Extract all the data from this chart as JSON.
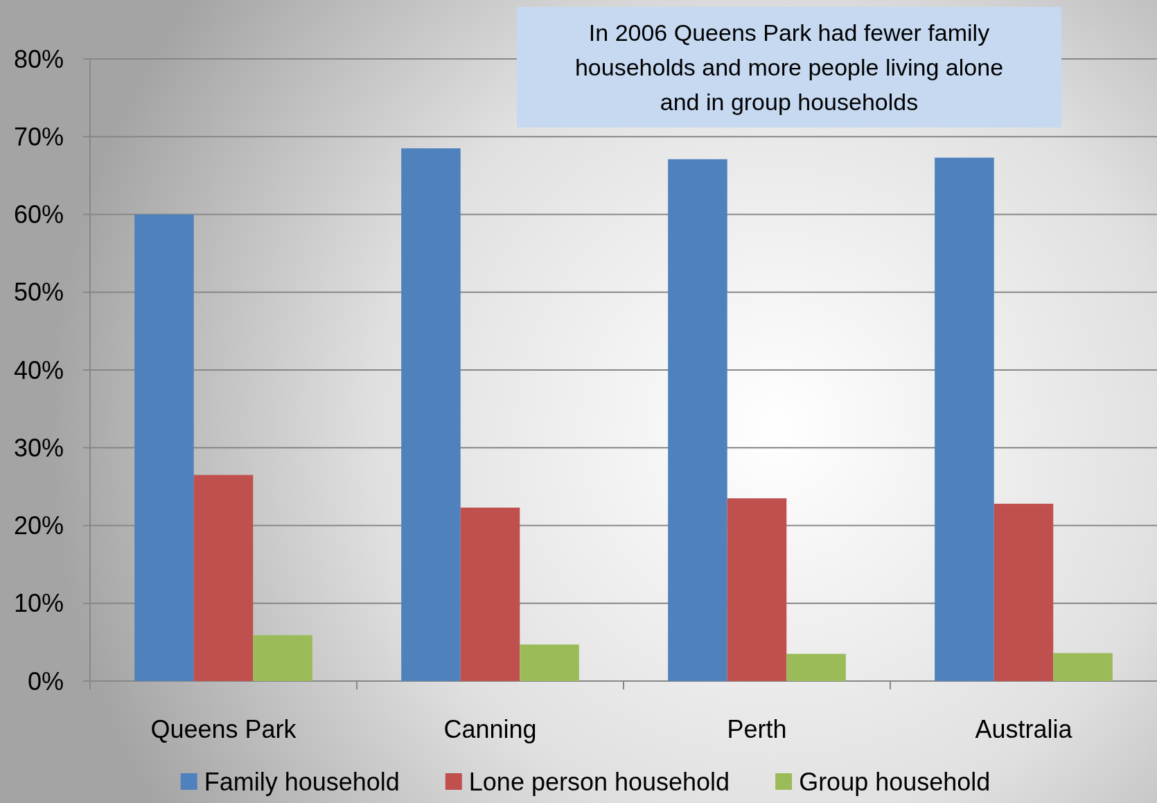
{
  "chart_data": {
    "type": "bar",
    "categories": [
      "Queens Park",
      "Canning",
      "Perth",
      "Australia"
    ],
    "series": [
      {
        "name": "Family household",
        "color": "#4f81bd",
        "values": [
          60.0,
          68.5,
          67.1,
          67.3
        ]
      },
      {
        "name": "Lone person household",
        "color": "#c0504d",
        "values": [
          26.5,
          22.3,
          23.5,
          22.8
        ]
      },
      {
        "name": "Group household",
        "color": "#9bbb59",
        "values": [
          5.9,
          4.7,
          3.5,
          3.6
        ]
      }
    ],
    "ylim": [
      0,
      80
    ],
    "yticks": [
      {
        "value": 0,
        "label": "0%"
      },
      {
        "value": 10,
        "label": "10%"
      },
      {
        "value": 20,
        "label": "20%"
      },
      {
        "value": 30,
        "label": "30%"
      },
      {
        "value": 40,
        "label": "40%"
      },
      {
        "value": 50,
        "label": "50%"
      },
      {
        "value": 60,
        "label": "60%"
      },
      {
        "value": 70,
        "label": "70%"
      },
      {
        "value": 80,
        "label": "80%"
      }
    ],
    "grid": "y",
    "legend": "bottom",
    "annotations": [
      "In 2006 Queens Park had fewer family households and more people living alone and in group households"
    ]
  }
}
